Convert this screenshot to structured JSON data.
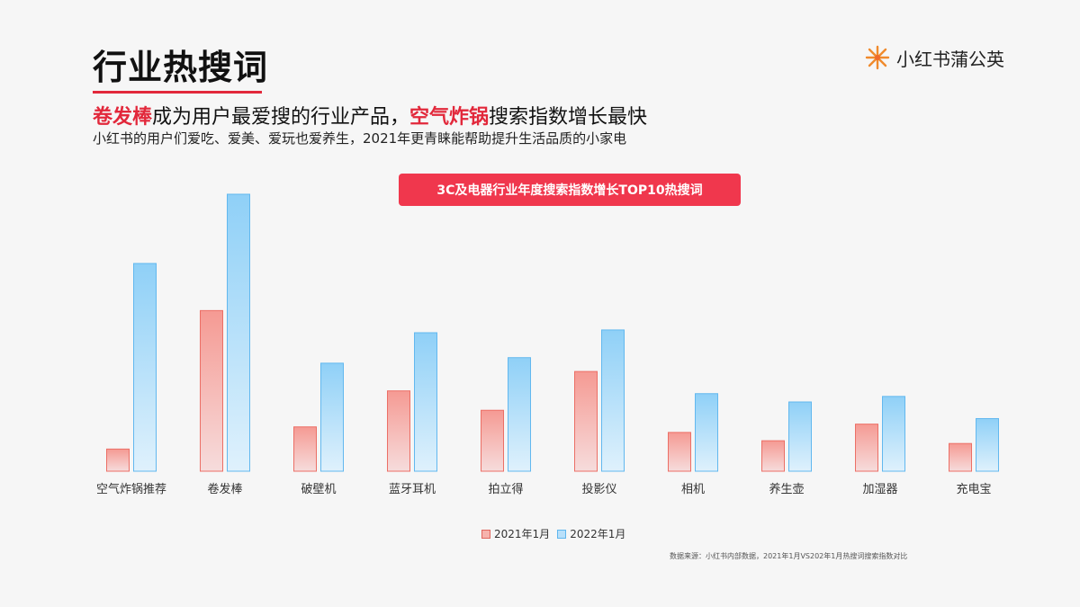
{
  "header": {
    "title": "行业热搜词",
    "brand_name": "小红书蒲公英",
    "brand_icon": "dandelion-icon"
  },
  "headline": {
    "part1": "卷发棒",
    "part2": "成为用户最爱搜的行业产品，",
    "part3": "空气炸锅",
    "part4": "搜索指数增长最快"
  },
  "subline": "小红书的用户们爱吃、爱美、爱玩也爱养生，2021年更青睐能帮助提升生活品质的小家电",
  "colors": {
    "accent": "#e2283b",
    "badge": "#f0374d",
    "bar_2021_top": "#f59a93",
    "bar_2021_bottom": "#f6dcdc",
    "bar_2022_top": "#8fd0f7",
    "bar_2022_bottom": "#dff1fc"
  },
  "chart_data": {
    "type": "bar",
    "title": "3C及电器行业年度搜索指数增长TOP10热搜词",
    "categories": [
      "空气炸锅推荐",
      "卷发棒",
      "破壁机",
      "蓝牙耳机",
      "拍立得",
      "投影仪",
      "相机",
      "养生壶",
      "加湿器",
      "充电宝"
    ],
    "series": [
      {
        "name": "2021年1月",
        "values": [
          8,
          58,
          16,
          29,
          22,
          36,
          14,
          11,
          17,
          10
        ]
      },
      {
        "name": "2022年1月",
        "values": [
          75,
          100,
          39,
          50,
          41,
          51,
          28,
          25,
          27,
          19
        ]
      }
    ],
    "ylim": [
      0,
      100
    ],
    "grid": false,
    "legend": "bottom"
  },
  "footer": {
    "source": "数据来源：小红书内部数据，2021年1月VS202年1月热搜词搜索指数对比"
  }
}
